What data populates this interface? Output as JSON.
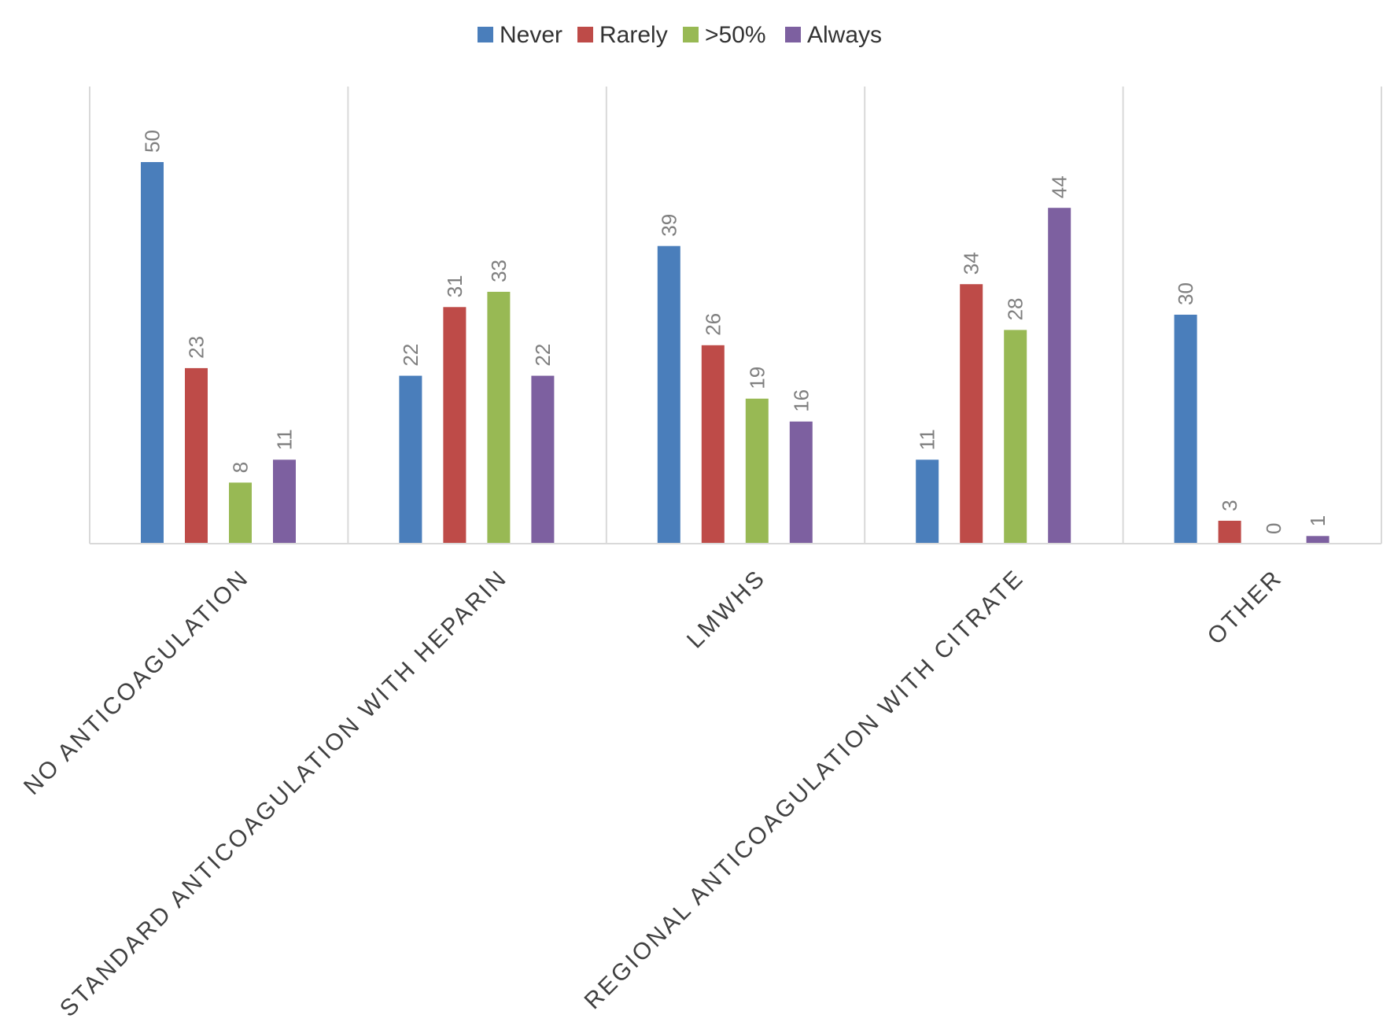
{
  "chart_data": {
    "type": "bar",
    "title": "",
    "xlabel": "",
    "ylabel": "",
    "ylim": [
      0,
      60
    ],
    "grid": false,
    "legend_position": "top-center",
    "categories": [
      "NO ANTICOAGULATION",
      "STANDARD ANTICOAGULATION WITH HEPARIN",
      "LMWHS",
      "REGIONAL ANTICOAGULATION WITH CITRATE",
      "OTHER"
    ],
    "series": [
      {
        "name": "Never",
        "color": "#4a7ebb",
        "values": [
          50,
          22,
          39,
          11,
          30
        ]
      },
      {
        "name": "Rarely",
        "color": "#be4b48",
        "values": [
          23,
          31,
          26,
          34,
          3
        ]
      },
      {
        "name": ">50%",
        "color": "#98b954",
        "values": [
          8,
          33,
          19,
          28,
          0
        ]
      },
      {
        "name": "Always",
        "color": "#7d60a0",
        "values": [
          11,
          22,
          16,
          44,
          1
        ]
      }
    ]
  }
}
